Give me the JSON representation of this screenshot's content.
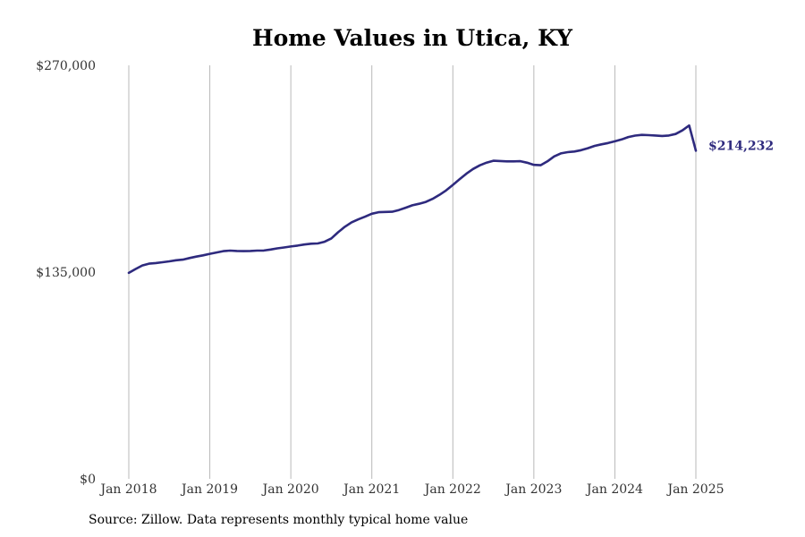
{
  "colors": {
    "line": "#2e2a7e",
    "grid": "#b8b8b8",
    "text": "#333333"
  },
  "chart_data": {
    "type": "line",
    "title": "Home Values in Utica, KY",
    "xlabel": "",
    "ylabel": "",
    "x_ticks": [
      "Jan 2018",
      "Jan 2019",
      "Jan 2020",
      "Jan 2021",
      "Jan 2022",
      "Jan 2023",
      "Jan 2024",
      "Jan 2025"
    ],
    "y_ticks": [
      {
        "value": 0,
        "label": "$0"
      },
      {
        "value": 135000,
        "label": "$135,000"
      },
      {
        "value": 270000,
        "label": "$270,000"
      }
    ],
    "xlim": [
      "2018-01",
      "2025-01"
    ],
    "ylim": [
      0,
      270000
    ],
    "grid": "vertical",
    "end_label": "$214,232",
    "series": [
      {
        "x": [
          "2018-01",
          "2018-02",
          "2018-03",
          "2018-04",
          "2018-05",
          "2018-06",
          "2018-07",
          "2018-08",
          "2018-09",
          "2018-10",
          "2018-11",
          "2018-12",
          "2019-01",
          "2019-02",
          "2019-03",
          "2019-04",
          "2019-05",
          "2019-06",
          "2019-07",
          "2019-08",
          "2019-09",
          "2019-10",
          "2019-11",
          "2019-12",
          "2020-01",
          "2020-02",
          "2020-03",
          "2020-04",
          "2020-05",
          "2020-06",
          "2020-07",
          "2020-08",
          "2020-09",
          "2020-10",
          "2020-11",
          "2020-12",
          "2021-01",
          "2021-02",
          "2021-03",
          "2021-04",
          "2021-05",
          "2021-06",
          "2021-07",
          "2021-08",
          "2021-09",
          "2021-10",
          "2021-11",
          "2021-12",
          "2022-01",
          "2022-02",
          "2022-03",
          "2022-04",
          "2022-05",
          "2022-06",
          "2022-07",
          "2022-08",
          "2022-09",
          "2022-10",
          "2022-11",
          "2022-12",
          "2023-01",
          "2023-02",
          "2023-03",
          "2023-04",
          "2023-05",
          "2023-06",
          "2023-07",
          "2023-08",
          "2023-09",
          "2023-10",
          "2023-11",
          "2023-12",
          "2024-01",
          "2024-02",
          "2024-03",
          "2024-04",
          "2024-05",
          "2024-06",
          "2024-07",
          "2024-08",
          "2024-09",
          "2024-10",
          "2024-11",
          "2024-12",
          "2025-01"
        ],
        "values": [
          134500,
          137000,
          139300,
          140500,
          140900,
          141400,
          142000,
          142700,
          143100,
          144200,
          145100,
          145900,
          146900,
          147800,
          148700,
          149000,
          148800,
          148700,
          148800,
          149000,
          149100,
          149700,
          150500,
          151100,
          151700,
          152300,
          153000,
          153500,
          153700,
          154800,
          157000,
          161000,
          164600,
          167500,
          169400,
          171200,
          173100,
          174100,
          174300,
          174400,
          175500,
          177000,
          178600,
          179600,
          180800,
          182800,
          185400,
          188300,
          191900,
          195600,
          199200,
          202300,
          204700,
          206500,
          207700,
          207500,
          207300,
          207300,
          207400,
          206400,
          205000,
          204800,
          207300,
          210500,
          212500,
          213300,
          213700,
          214600,
          215900,
          217400,
          218400,
          219300,
          220400,
          221600,
          223200,
          224100,
          224600,
          224400,
          224200,
          223900,
          224200,
          225200,
          227500,
          230700,
          214232
        ]
      }
    ]
  },
  "source": "Source: Zillow. Data represents monthly typical home value"
}
